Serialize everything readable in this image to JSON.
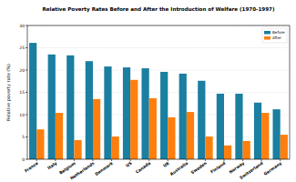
{
  "chart_data": {
    "type": "bar",
    "title": "Relative Poverty Rates Before and After the Introduction of Welfare (1970-1997)",
    "y_label": "Relative poverty rate (%)",
    "categories": [
      "France",
      "Italy",
      "Belgium",
      "Netherlands",
      "Denmark",
      "US",
      "Canada",
      "UK",
      "Australia",
      "Sweden",
      "Finland",
      "Norway",
      "Switzerland",
      "Germany"
    ],
    "series": [
      {
        "name": "Before",
        "color": "#1a7fa0",
        "values": [
          26.1,
          23.5,
          23.3,
          22.0,
          20.8,
          20.6,
          20.4,
          19.6,
          19.2,
          17.6,
          14.7,
          14.7,
          12.7,
          11.2
        ]
      },
      {
        "name": "After",
        "color": "#ff7f0e",
        "values": [
          6.7,
          10.4,
          4.3,
          13.5,
          5.1,
          17.8,
          13.7,
          9.4,
          10.6,
          5.1,
          3.1,
          4.1,
          10.4,
          5.5
        ]
      }
    ],
    "ylim": [
      0,
      30
    ],
    "yticks": [
      0,
      5,
      10,
      15,
      20,
      25,
      30
    ],
    "grid": true,
    "legend": "upper right"
  }
}
